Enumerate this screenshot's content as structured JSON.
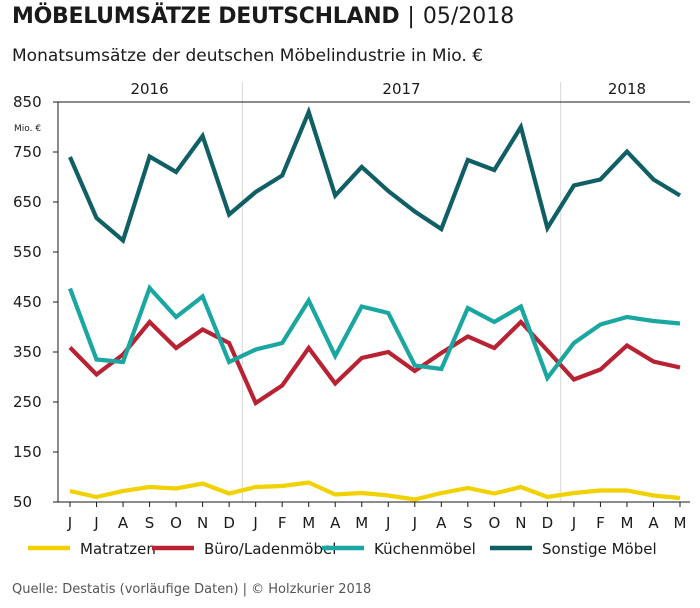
{
  "header": {
    "title": "MÖBELUMSÄTZE DEUTSCHLAND",
    "separator": "|",
    "date": "05/2018",
    "subtitle": "Monatsumsätze der deutschen Möbelindustrie in Mio. €"
  },
  "footer": {
    "source": "Quelle: Destatis (vorläufige Daten) | © Holzkurier 2018"
  },
  "chart_data": {
    "type": "line",
    "title": "MÖBELUMSÄTZE DEUTSCHLAND | 05/2018",
    "subtitle": "Monatsumsätze der deutschen Möbelindustrie in Mio. €",
    "y_unit": "Mio. €",
    "ylim": [
      50,
      850
    ],
    "yticks": [
      50,
      150,
      250,
      350,
      450,
      550,
      650,
      750,
      850
    ],
    "grid": "vertical lines at year boundaries",
    "legend_position": "bottom",
    "years": [
      {
        "label": "2016",
        "from": 0,
        "to": 6
      },
      {
        "label": "2017",
        "from": 7,
        "to": 18
      },
      {
        "label": "2018",
        "from": 19,
        "to": 23
      }
    ],
    "categories": [
      "J",
      "J",
      "A",
      "S",
      "O",
      "N",
      "D",
      "J",
      "F",
      "M",
      "A",
      "M",
      "J",
      "J",
      "A",
      "S",
      "O",
      "N",
      "D",
      "J",
      "F",
      "M",
      "A",
      "M"
    ],
    "series": [
      {
        "name": "Matratzen",
        "color": "#f2d100",
        "values": [
          72,
          60,
          72,
          80,
          77,
          87,
          67,
          80,
          82,
          89,
          65,
          68,
          63,
          55,
          68,
          78,
          67,
          80,
          60,
          68,
          73,
          73,
          63,
          58
        ]
      },
      {
        "name": "Büro/Ladenmöbel",
        "color": "#b82233",
        "values": [
          359,
          305,
          345,
          410,
          358,
          395,
          368,
          248,
          283,
          358,
          287,
          338,
          350,
          312,
          348,
          381,
          358,
          410,
          353,
          295,
          315,
          363,
          331,
          319
        ]
      },
      {
        "name": "Küchenmöbel",
        "color": "#1aa6a1",
        "values": [
          477,
          335,
          330,
          478,
          420,
          461,
          330,
          355,
          368,
          453,
          342,
          441,
          428,
          323,
          316,
          438,
          410,
          441,
          298,
          368,
          405,
          420,
          412,
          407
        ]
      },
      {
        "name": "Sonstige Möbel",
        "color": "#0f5f64",
        "values": [
          740,
          618,
          573,
          741,
          710,
          782,
          625,
          670,
          703,
          830,
          663,
          720,
          672,
          631,
          596,
          734,
          714,
          800,
          598,
          683,
          695,
          751,
          695,
          663
        ]
      }
    ]
  }
}
